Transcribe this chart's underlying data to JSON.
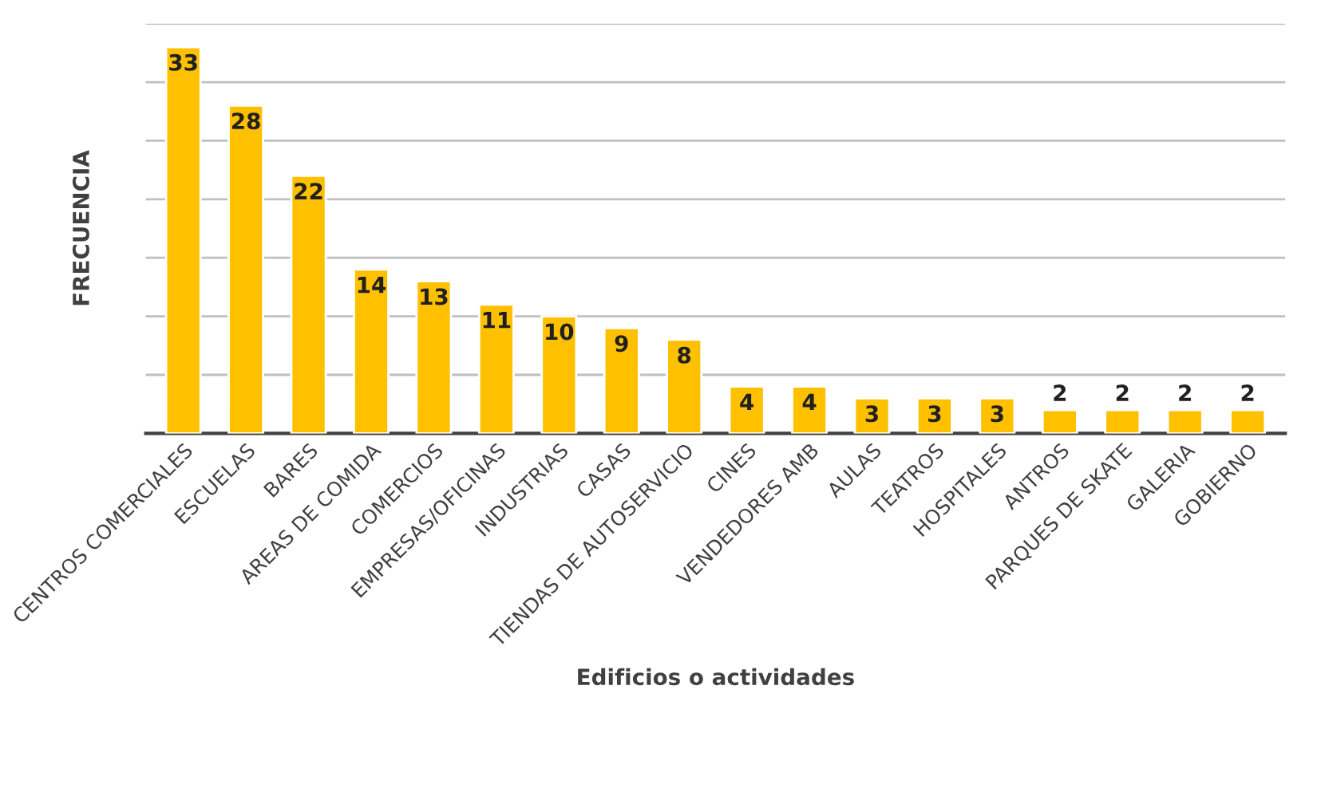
{
  "chart_data": {
    "type": "bar",
    "xlabel": "Edificios o actividades",
    "ylabel": "FRECUENCIA",
    "categories": [
      "CENTROS COMERCIALES",
      "ESCUELAS",
      "BARES",
      "AREAS DE COMIDA",
      "COMERCIOS",
      "EMPRESAS/OFICINAS",
      "INDUSTRIAS",
      "CASAS",
      "TIENDAS DE AUTOSERVICIO",
      "CINES",
      "VENDEDORES AMB",
      "AULAS",
      "TEATROS",
      "HOSPITALES",
      "ANTROS",
      "PARQUES DE SKATE",
      "GALERIA",
      "GOBIERNO"
    ],
    "values": [
      33,
      28,
      22,
      14,
      13,
      11,
      10,
      9,
      8,
      4,
      4,
      3,
      3,
      3,
      2,
      2,
      2,
      2
    ],
    "color": "#ffc000",
    "ylim": [
      0,
      35
    ],
    "yticks": [
      {
        "value": 0,
        "label": null
      },
      {
        "value": 5,
        "label": null
      },
      {
        "value": 10,
        "label": null
      },
      {
        "value": 15,
        "label": null
      },
      {
        "value": 20,
        "label": null
      },
      {
        "value": 25,
        "label": null
      },
      {
        "value": 30,
        "label": null
      },
      {
        "value": 35,
        "label": null
      }
    ],
    "tick_labels": "x",
    "grid": "y",
    "data_labels": true
  }
}
